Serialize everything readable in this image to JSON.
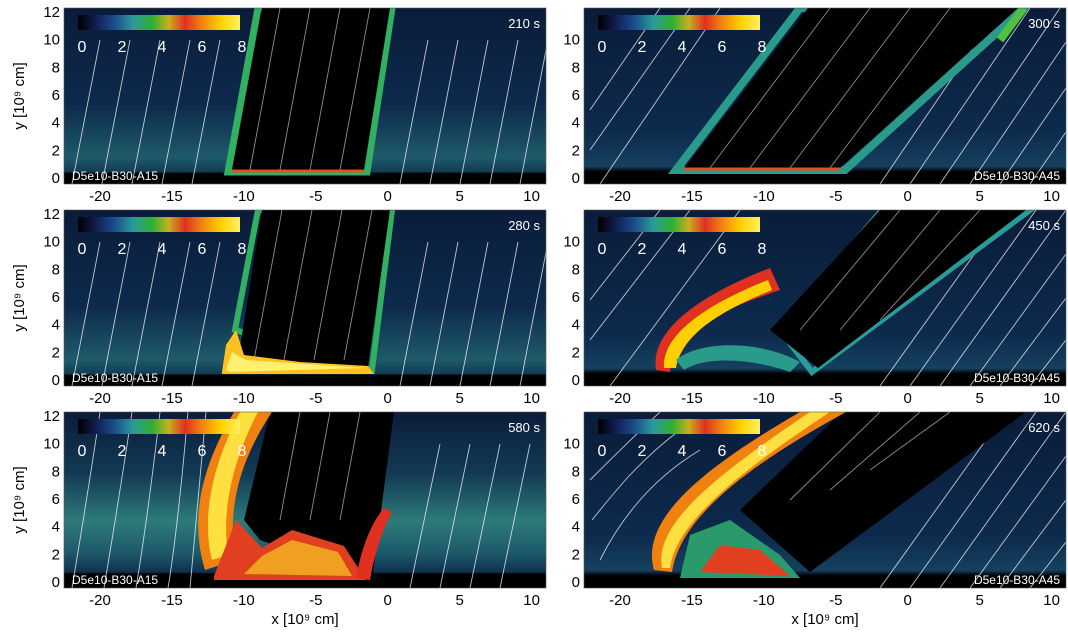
{
  "figure": {
    "xlabel": "x [10⁹ cm]",
    "ylabel": "y [10⁹ cm]",
    "colorbar_ticks": [
      "0",
      "2",
      "4",
      "6",
      "8"
    ],
    "colors": {
      "background": "#0b1f3f",
      "tube": "#000000",
      "colormap": [
        "#000000",
        "#101a4a",
        "#1a4a8a",
        "#2a9a9a",
        "#30b030",
        "#c8b020",
        "#e03020",
        "#f08010",
        "#ffd000",
        "#fff060"
      ]
    }
  },
  "panels": [
    {
      "id": "left-1",
      "time": "210 s",
      "run": "D5e10-B30-A15",
      "x_ticks": [
        "-20",
        "-15",
        "-10",
        "-5",
        "0",
        "5",
        "10"
      ],
      "y_ticks": [
        "0",
        "2",
        "4",
        "6",
        "8",
        "10",
        "12"
      ],
      "show_ylabel": true,
      "show_xlabel": false
    },
    {
      "id": "right-1",
      "time": "300 s",
      "run": "D5e10-B30-A45",
      "x_ticks": [
        "-20",
        "-15",
        "-10",
        "-5",
        "0",
        "5",
        "10"
      ],
      "y_ticks": [
        "0",
        "2",
        "4",
        "6",
        "8",
        "10"
      ],
      "show_ylabel": false,
      "show_xlabel": false
    },
    {
      "id": "left-2",
      "time": "280 s",
      "run": "D5e10-B30-A15",
      "x_ticks": [
        "-20",
        "-15",
        "-10",
        "-5",
        "0",
        "5",
        "10"
      ],
      "y_ticks": [
        "0",
        "2",
        "4",
        "6",
        "8",
        "10",
        "12"
      ],
      "show_ylabel": true,
      "show_xlabel": false
    },
    {
      "id": "right-2",
      "time": "450 s",
      "run": "D5e10-B30-A45",
      "x_ticks": [
        "-20",
        "-15",
        "-10",
        "-5",
        "0",
        "5",
        "10"
      ],
      "y_ticks": [
        "0",
        "2",
        "4",
        "6",
        "8",
        "10"
      ],
      "show_ylabel": false,
      "show_xlabel": false
    },
    {
      "id": "left-3",
      "time": "580 s",
      "run": "D5e10-B30-A15",
      "x_ticks": [
        "-20",
        "-15",
        "-10",
        "-5",
        "0",
        "5",
        "10"
      ],
      "y_ticks": [
        "0",
        "2",
        "4",
        "6",
        "8",
        "10",
        "12"
      ],
      "show_ylabel": true,
      "show_xlabel": true
    },
    {
      "id": "right-3",
      "time": "620 s",
      "run": "D5e10-B30-A45",
      "x_ticks": [
        "-20",
        "-15",
        "-10",
        "-5",
        "0",
        "5",
        "10"
      ],
      "y_ticks": [
        "0",
        "2",
        "4",
        "6",
        "8",
        "10"
      ],
      "show_ylabel": false,
      "show_xlabel": true
    }
  ]
}
